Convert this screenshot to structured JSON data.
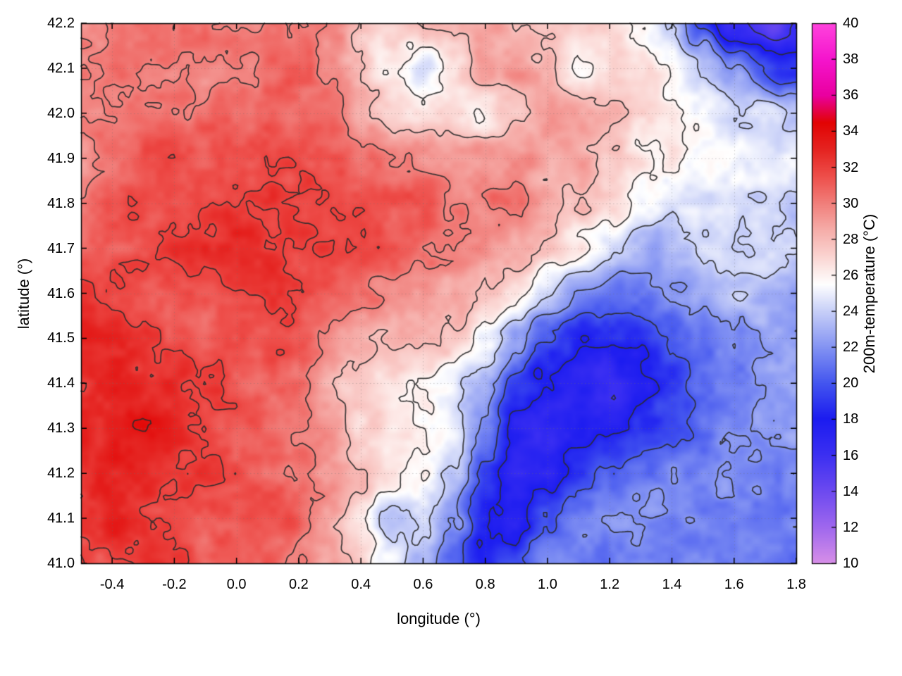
{
  "figure": {
    "background": "#ffffff",
    "text_color": "#000000",
    "border_color": "#000000"
  },
  "chart_data": {
    "type": "heatmap",
    "title": "",
    "xlabel": "longitude (°)",
    "ylabel": "latitude (°)",
    "colorbar_label": "200m-temperature (°C)",
    "xlim": [
      -0.5,
      1.8
    ],
    "ylim": [
      41.0,
      42.2
    ],
    "clim": [
      10,
      40
    ],
    "grid": true,
    "x_ticks": [
      -0.4,
      -0.2,
      0.0,
      0.2,
      0.4,
      0.6,
      0.8,
      1.0,
      1.2,
      1.4,
      1.6,
      1.8
    ],
    "x_tick_labels": [
      "-0.4",
      "-0.2",
      "0.0",
      "0.2",
      "0.4",
      "0.6",
      "0.8",
      "1.0",
      "1.2",
      "1.4",
      "1.6",
      "1.8"
    ],
    "y_ticks": [
      41.0,
      41.1,
      41.2,
      41.3,
      41.4,
      41.5,
      41.6,
      41.7,
      41.8,
      41.9,
      42.0,
      42.1,
      42.2
    ],
    "y_tick_labels": [
      "41.0",
      "41.1",
      "41.2",
      "41.3",
      "41.4",
      "41.5",
      "41.6",
      "41.7",
      "41.8",
      "41.9",
      "42.0",
      "42.1",
      "42.2"
    ],
    "cb_ticks": [
      10,
      12,
      14,
      16,
      18,
      20,
      22,
      24,
      26,
      28,
      30,
      32,
      34,
      36,
      38,
      40
    ],
    "cb_tick_labels": [
      "10",
      "12",
      "14",
      "16",
      "18",
      "20",
      "22",
      "24",
      "26",
      "28",
      "30",
      "32",
      "34",
      "36",
      "38",
      "40"
    ],
    "contour_levels": [
      14,
      16,
      18,
      20,
      22,
      24,
      26,
      28,
      30,
      32,
      34
    ],
    "contour_color": "#2d2d2d",
    "grid_color": "#6e6e6e",
    "palette": [
      {
        "value": 10,
        "color": "#d78fe8"
      },
      {
        "value": 12,
        "color": "#9f68ee"
      },
      {
        "value": 14,
        "color": "#6d4af0"
      },
      {
        "value": 16,
        "color": "#3c30f2"
      },
      {
        "value": 18,
        "color": "#1c1cf0"
      },
      {
        "value": 20,
        "color": "#4456ef"
      },
      {
        "value": 22,
        "color": "#8494f3"
      },
      {
        "value": 24,
        "color": "#c8d0f8"
      },
      {
        "value": 25.5,
        "color": "#ffffff"
      },
      {
        "value": 26.2,
        "color": "#fdedeb"
      },
      {
        "value": 27,
        "color": "#fbd6d3"
      },
      {
        "value": 28.5,
        "color": "#f6aeaa"
      },
      {
        "value": 30,
        "color": "#f17f7b"
      },
      {
        "value": 31.5,
        "color": "#ee4f4b"
      },
      {
        "value": 33,
        "color": "#e52421"
      },
      {
        "value": 34.5,
        "color": "#e20404"
      },
      {
        "value": 36,
        "color": "#ea00a0"
      },
      {
        "value": 38,
        "color": "#f515cd"
      },
      {
        "value": 40,
        "color": "#ff44dd"
      }
    ],
    "lon": [
      -0.5,
      -0.4,
      -0.3,
      -0.2,
      -0.1,
      0.0,
      0.1,
      0.2,
      0.3,
      0.4,
      0.5,
      0.6,
      0.7,
      0.8,
      0.9,
      1.0,
      1.1,
      1.2,
      1.3,
      1.4,
      1.5,
      1.6,
      1.7,
      1.8
    ],
    "lat": [
      41.0,
      41.1,
      41.2,
      41.3,
      41.4,
      41.5,
      41.6,
      41.7,
      41.8,
      41.9,
      42.0,
      42.1,
      42.2
    ],
    "temperature": [
      [
        32.0,
        32.0,
        32.5,
        32.0,
        31.5,
        31.0,
        31.0,
        30.0,
        28.5,
        26.5,
        25.0,
        23.8,
        21.0,
        18.5,
        19.5,
        21.8,
        21.6,
        21.5,
        21.4,
        21.4,
        21.3,
        21.3,
        21.3,
        21.2
      ],
      [
        32.5,
        33.0,
        32.5,
        32.0,
        31.5,
        31.5,
        31.0,
        30.5,
        29.0,
        27.0,
        23.5,
        24.5,
        22.0,
        17.5,
        17.0,
        20.5,
        21.3,
        21.6,
        21.7,
        21.7,
        21.7,
        21.7,
        21.6,
        21.5
      ],
      [
        33.0,
        33.0,
        33.0,
        32.5,
        32.0,
        31.5,
        31.0,
        30.5,
        29.5,
        28.0,
        26.5,
        25.8,
        23.5,
        19.0,
        16.5,
        17.5,
        19.0,
        20.5,
        21.3,
        21.7,
        21.8,
        22.0,
        21.9,
        21.8
      ],
      [
        33.0,
        33.0,
        33.5,
        33.0,
        32.0,
        31.5,
        31.0,
        30.5,
        29.5,
        27.5,
        27.0,
        25.8,
        24.5,
        21.0,
        17.0,
        16.5,
        18.0,
        17.5,
        19.0,
        20.3,
        21.0,
        21.7,
        22.0,
        21.9
      ],
      [
        32.5,
        33.0,
        33.0,
        32.5,
        32.0,
        31.5,
        31.0,
        30.0,
        28.5,
        27.0,
        26.5,
        26.0,
        25.0,
        23.0,
        19.0,
        17.5,
        17.0,
        16.5,
        17.5,
        19.0,
        20.5,
        21.5,
        22.0,
        21.7
      ],
      [
        33.0,
        32.5,
        32.0,
        31.5,
        31.5,
        31.5,
        31.5,
        31.0,
        30.0,
        29.0,
        28.5,
        28.0,
        27.0,
        25.5,
        23.0,
        20.0,
        18.5,
        18.0,
        18.5,
        20.0,
        21.0,
        22.0,
        22.4,
        22.1
      ],
      [
        32.0,
        31.5,
        31.5,
        31.5,
        31.5,
        32.0,
        32.0,
        31.5,
        31.0,
        30.5,
        30.0,
        29.5,
        28.5,
        27.5,
        26.0,
        24.0,
        22.0,
        21.0,
        21.0,
        22.0,
        23.0,
        23.8,
        23.4,
        22.8
      ],
      [
        31.0,
        31.0,
        31.5,
        32.0,
        32.0,
        32.5,
        32.5,
        32.0,
        31.5,
        31.5,
        31.0,
        30.5,
        30.0,
        29.5,
        28.5,
        27.5,
        26.0,
        24.5,
        23.5,
        23.0,
        23.5,
        24.0,
        24.0,
        23.5
      ],
      [
        30.5,
        31.0,
        31.5,
        32.0,
        32.0,
        32.0,
        32.0,
        32.0,
        32.0,
        31.5,
        31.5,
        31.0,
        30.5,
        30.5,
        30.0,
        29.0,
        28.0,
        26.5,
        25.5,
        25.0,
        25.0,
        25.0,
        24.5,
        24.0
      ],
      [
        30.0,
        30.5,
        31.0,
        31.0,
        31.0,
        31.0,
        31.5,
        31.5,
        31.0,
        30.5,
        30.0,
        30.0,
        29.5,
        29.5,
        29.5,
        29.0,
        28.5,
        27.5,
        26.5,
        26.0,
        25.5,
        25.5,
        25.0,
        24.5
      ],
      [
        30.0,
        30.0,
        30.5,
        30.5,
        30.5,
        30.5,
        31.0,
        30.5,
        30.0,
        28.5,
        27.5,
        27.0,
        27.5,
        26.0,
        28.0,
        29.0,
        28.5,
        28.0,
        27.0,
        26.0,
        25.5,
        25.0,
        24.5,
        24.0
      ],
      [
        30.0,
        30.0,
        30.0,
        30.0,
        30.0,
        30.0,
        30.5,
        30.5,
        30.0,
        28.0,
        26.5,
        24.0,
        26.0,
        28.5,
        29.0,
        28.0,
        26.0,
        27.0,
        26.5,
        25.5,
        24.0,
        22.0,
        20.0,
        19.0
      ],
      [
        29.5,
        29.5,
        30.0,
        30.0,
        30.0,
        30.0,
        30.0,
        30.0,
        29.5,
        28.0,
        27.0,
        27.5,
        28.5,
        29.0,
        28.5,
        27.5,
        27.0,
        26.5,
        26.0,
        24.0,
        20.0,
        16.0,
        15.0,
        16.0
      ]
    ]
  }
}
